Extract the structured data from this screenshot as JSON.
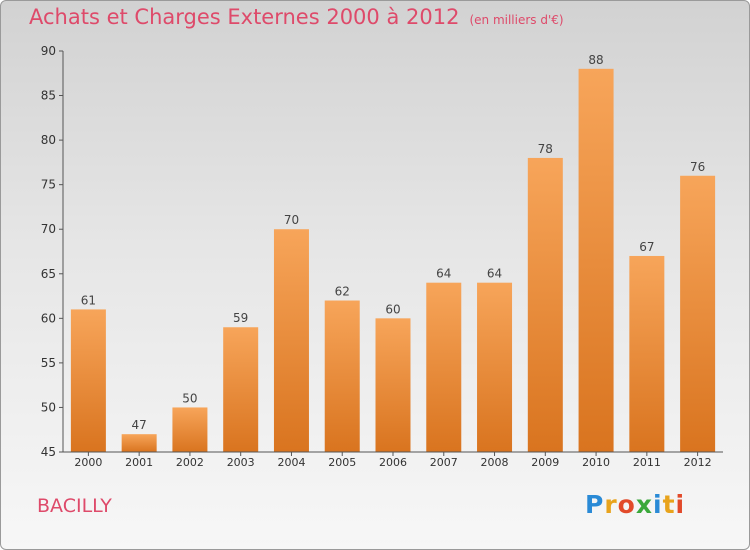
{
  "title": "Achats et Charges Externes 2000 à 2012",
  "subtitle": "(en milliers d'€)",
  "commune": "BACILLY",
  "logo": {
    "letters": [
      "P",
      "r",
      "o",
      "x",
      "i",
      "t",
      "i"
    ],
    "colors": [
      "#2a8ad6",
      "#e8a31c",
      "#e24a2a",
      "#3aa83a",
      "#2a8ad6",
      "#e8a31c",
      "#e24a2a"
    ]
  },
  "colors": {
    "title": "#de4a6a",
    "bar_top": "#f7a55a",
    "bar_bottom": "#d9741f",
    "axis": "#555555"
  },
  "chart_data": {
    "type": "bar",
    "categories": [
      "2000",
      "2001",
      "2002",
      "2003",
      "2004",
      "2005",
      "2006",
      "2007",
      "2008",
      "2009",
      "2010",
      "2011",
      "2012"
    ],
    "values": [
      61,
      47,
      50,
      59,
      70,
      62,
      60,
      64,
      64,
      78,
      88,
      67,
      76
    ],
    "ylim": [
      45,
      90
    ],
    "yticks": [
      45,
      50,
      55,
      60,
      65,
      70,
      75,
      80,
      85,
      90
    ],
    "grid": false
  }
}
